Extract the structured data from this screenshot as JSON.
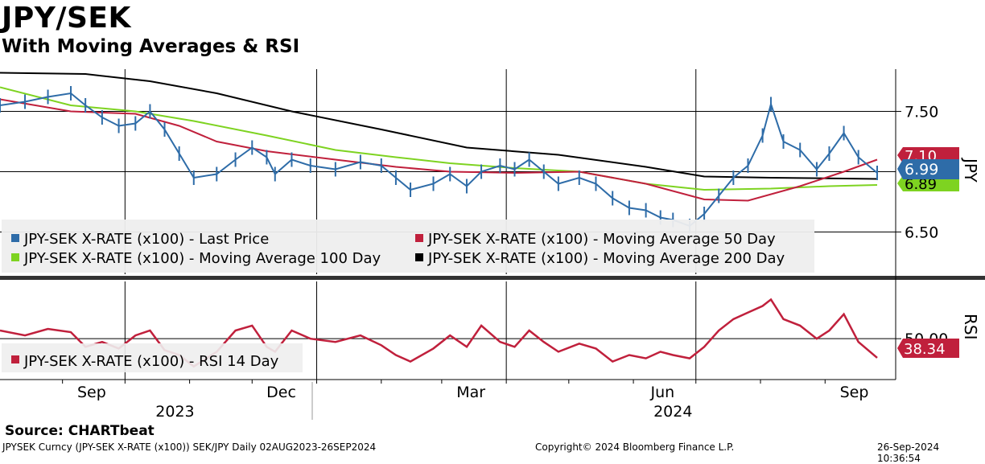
{
  "header": {
    "title": "JPY/SEK",
    "subtitle": "With Moving Averages & RSI"
  },
  "footer": {
    "source": "Source: CHARTbeat",
    "ticker_info": "JPYSEK Curncy (JPY-SEK X-RATE  (x100)) SEK/JPY  Daily 02AUG2023-26SEP2024",
    "copyright": "Copyright© 2024 Bloomberg Finance L.P.",
    "timestamp": "26-Sep-2024 10:36:54"
  },
  "colors": {
    "price": "#2e6ca8",
    "ma50": "#c0203c",
    "ma100": "#7ed321",
    "ma200": "#000000",
    "rsi": "#c0203c"
  },
  "chart_data": [
    {
      "type": "line",
      "panel": "price",
      "x_range": [
        "2023-08-02",
        "2024-09-26"
      ],
      "x_ticks": [
        "Sep",
        "Dec",
        "Mar",
        "Jun",
        "Sep"
      ],
      "year_labels": [
        "2023",
        "2024"
      ],
      "y_axis_label": "JPY",
      "y_ticks": [
        "7.50",
        "6.50"
      ],
      "ylim": [
        6.15,
        7.85
      ],
      "legend": [
        "JPY-SEK X-RATE (x100) - Last Price",
        "JPY-SEK X-RATE (x100) - Moving Average 50 Day",
        "JPY-SEK X-RATE (x100) - Moving Average 100 Day",
        "JPY-SEK X-RATE (x100) - Moving Average 200 Day"
      ],
      "last_values": {
        "ma50": "7.10",
        "last_price": "6.99",
        "ma100": "6.89"
      },
      "series": [
        {
          "name": "JPY-SEK X-RATE (x100) - Last Price",
          "points": [
            [
              "2023-08-02",
              7.55
            ],
            [
              "2023-08-14",
              7.58
            ],
            [
              "2023-08-25",
              7.62
            ],
            [
              "2023-09-05",
              7.65
            ],
            [
              "2023-09-12",
              7.55
            ],
            [
              "2023-09-20",
              7.45
            ],
            [
              "2023-09-28",
              7.38
            ],
            [
              "2023-10-06",
              7.4
            ],
            [
              "2023-10-13",
              7.5
            ],
            [
              "2023-10-20",
              7.35
            ],
            [
              "2023-10-27",
              7.15
            ],
            [
              "2023-11-03",
              6.95
            ],
            [
              "2023-11-14",
              6.98
            ],
            [
              "2023-11-23",
              7.1
            ],
            [
              "2023-12-01",
              7.2
            ],
            [
              "2023-12-08",
              7.12
            ],
            [
              "2023-12-12",
              6.98
            ],
            [
              "2023-12-20",
              7.1
            ],
            [
              "2023-12-29",
              7.05
            ],
            [
              "2024-01-10",
              7.02
            ],
            [
              "2024-01-22",
              7.08
            ],
            [
              "2024-02-01",
              7.05
            ],
            [
              "2024-02-08",
              6.95
            ],
            [
              "2024-02-15",
              6.85
            ],
            [
              "2024-02-26",
              6.9
            ],
            [
              "2024-03-05",
              6.98
            ],
            [
              "2024-03-13",
              6.88
            ],
            [
              "2024-03-20",
              7.0
            ],
            [
              "2024-03-29",
              7.05
            ],
            [
              "2024-04-05",
              7.02
            ],
            [
              "2024-04-12",
              7.1
            ],
            [
              "2024-04-19",
              7.0
            ],
            [
              "2024-04-26",
              6.9
            ],
            [
              "2024-05-06",
              6.95
            ],
            [
              "2024-05-14",
              6.9
            ],
            [
              "2024-05-22",
              6.78
            ],
            [
              "2024-05-30",
              6.7
            ],
            [
              "2024-06-07",
              6.68
            ],
            [
              "2024-06-14",
              6.62
            ],
            [
              "2024-06-20",
              6.6
            ],
            [
              "2024-06-28",
              6.55
            ],
            [
              "2024-07-05",
              6.65
            ],
            [
              "2024-07-12",
              6.8
            ],
            [
              "2024-07-19",
              6.95
            ],
            [
              "2024-07-26",
              7.05
            ],
            [
              "2024-08-02",
              7.3
            ],
            [
              "2024-08-06",
              7.56
            ],
            [
              "2024-08-12",
              7.25
            ],
            [
              "2024-08-20",
              7.18
            ],
            [
              "2024-08-28",
              7.02
            ],
            [
              "2024-09-03",
              7.15
            ],
            [
              "2024-09-10",
              7.32
            ],
            [
              "2024-09-17",
              7.12
            ],
            [
              "2024-09-26",
              6.99
            ]
          ]
        },
        {
          "name": "JPY-SEK X-RATE (x100) - Moving Average 50 Day",
          "points": [
            [
              "2023-08-02",
              7.6
            ],
            [
              "2023-09-05",
              7.5
            ],
            [
              "2023-10-06",
              7.48
            ],
            [
              "2023-10-27",
              7.38
            ],
            [
              "2023-11-14",
              7.25
            ],
            [
              "2023-12-08",
              7.17
            ],
            [
              "2024-01-10",
              7.1
            ],
            [
              "2024-02-08",
              7.04
            ],
            [
              "2024-03-05",
              7.0
            ],
            [
              "2024-04-05",
              6.99
            ],
            [
              "2024-05-06",
              7.0
            ],
            [
              "2024-06-07",
              6.9
            ],
            [
              "2024-07-05",
              6.77
            ],
            [
              "2024-07-26",
              6.76
            ],
            [
              "2024-08-20",
              6.88
            ],
            [
              "2024-09-10",
              7.0
            ],
            [
              "2024-09-26",
              7.1
            ]
          ]
        },
        {
          "name": "JPY-SEK X-RATE (x100) - Moving Average 100 Day",
          "points": [
            [
              "2023-08-02",
              7.7
            ],
            [
              "2023-09-05",
              7.55
            ],
            [
              "2023-10-06",
              7.5
            ],
            [
              "2023-11-03",
              7.42
            ],
            [
              "2023-12-08",
              7.3
            ],
            [
              "2024-01-10",
              7.18
            ],
            [
              "2024-02-08",
              7.12
            ],
            [
              "2024-03-05",
              7.07
            ],
            [
              "2024-04-05",
              7.03
            ],
            [
              "2024-05-06",
              7.0
            ],
            [
              "2024-06-07",
              6.9
            ],
            [
              "2024-07-05",
              6.85
            ],
            [
              "2024-08-06",
              6.86
            ],
            [
              "2024-09-03",
              6.88
            ],
            [
              "2024-09-26",
              6.89
            ]
          ]
        },
        {
          "name": "JPY-SEK X-RATE (x100) - Moving Average 200 Day",
          "points": [
            [
              "2023-08-02",
              7.82
            ],
            [
              "2023-09-12",
              7.81
            ],
            [
              "2023-10-13",
              7.75
            ],
            [
              "2023-11-14",
              7.65
            ],
            [
              "2023-12-20",
              7.5
            ],
            [
              "2024-02-01",
              7.35
            ],
            [
              "2024-03-13",
              7.2
            ],
            [
              "2024-04-26",
              7.14
            ],
            [
              "2024-06-07",
              7.04
            ],
            [
              "2024-07-05",
              6.96
            ],
            [
              "2024-08-06",
              6.95
            ],
            [
              "2024-09-26",
              6.94
            ]
          ]
        }
      ]
    },
    {
      "type": "line",
      "panel": "rsi",
      "y_axis_label": "RSI",
      "y_ticks": [
        "50.00"
      ],
      "ylim": [
        25,
        85
      ],
      "legend": [
        "JPY-SEK X-RATE (x100) - RSI 14 Day"
      ],
      "last_value": "38.34",
      "series": [
        {
          "name": "JPY-SEK X-RATE (x100) - RSI 14 Day",
          "points": [
            [
              "2023-08-02",
              55
            ],
            [
              "2023-08-14",
              52
            ],
            [
              "2023-08-25",
              56
            ],
            [
              "2023-09-05",
              54
            ],
            [
              "2023-09-12",
              45
            ],
            [
              "2023-09-20",
              48
            ],
            [
              "2023-09-28",
              44
            ],
            [
              "2023-10-06",
              52
            ],
            [
              "2023-10-13",
              55
            ],
            [
              "2023-10-20",
              43
            ],
            [
              "2023-10-27",
              40
            ],
            [
              "2023-11-03",
              33
            ],
            [
              "2023-11-14",
              42
            ],
            [
              "2023-11-23",
              55
            ],
            [
              "2023-12-01",
              58
            ],
            [
              "2023-12-08",
              45
            ],
            [
              "2023-12-12",
              42
            ],
            [
              "2023-12-20",
              55
            ],
            [
              "2023-12-29",
              50
            ],
            [
              "2024-01-10",
              48
            ],
            [
              "2024-01-22",
              52
            ],
            [
              "2024-02-01",
              46
            ],
            [
              "2024-02-08",
              40
            ],
            [
              "2024-02-15",
              36
            ],
            [
              "2024-02-26",
              44
            ],
            [
              "2024-03-05",
              52
            ],
            [
              "2024-03-13",
              45
            ],
            [
              "2024-03-20",
              58
            ],
            [
              "2024-03-29",
              48
            ],
            [
              "2024-04-05",
              45
            ],
            [
              "2024-04-12",
              55
            ],
            [
              "2024-04-19",
              48
            ],
            [
              "2024-04-26",
              42
            ],
            [
              "2024-05-06",
              47
            ],
            [
              "2024-05-14",
              44
            ],
            [
              "2024-05-22",
              36
            ],
            [
              "2024-05-30",
              40
            ],
            [
              "2024-06-07",
              38
            ],
            [
              "2024-06-14",
              42
            ],
            [
              "2024-06-20",
              40
            ],
            [
              "2024-06-28",
              38
            ],
            [
              "2024-07-05",
              45
            ],
            [
              "2024-07-12",
              55
            ],
            [
              "2024-07-19",
              62
            ],
            [
              "2024-07-26",
              66
            ],
            [
              "2024-08-02",
              70
            ],
            [
              "2024-08-06",
              74
            ],
            [
              "2024-08-12",
              62
            ],
            [
              "2024-08-20",
              58
            ],
            [
              "2024-08-28",
              50
            ],
            [
              "2024-09-03",
              55
            ],
            [
              "2024-09-10",
              65
            ],
            [
              "2024-09-17",
              48
            ],
            [
              "2024-09-26",
              38.34
            ]
          ]
        }
      ]
    }
  ]
}
